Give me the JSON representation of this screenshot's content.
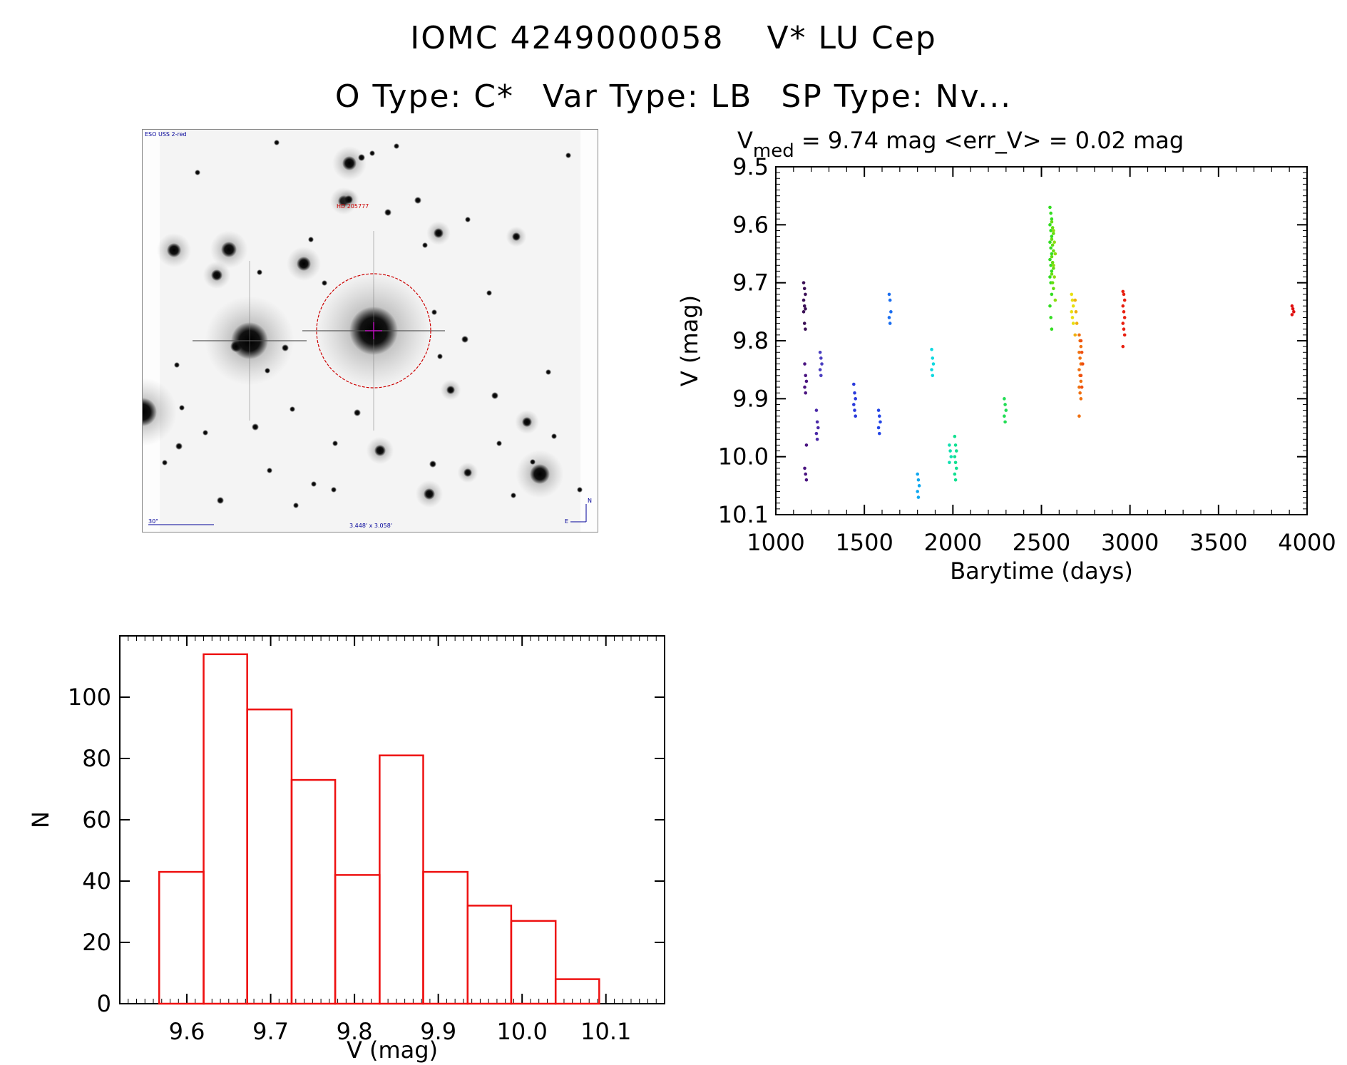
{
  "header": {
    "object_id": "IOMC 4249000058",
    "object_name": "V* LU Cep",
    "o_type": "O Type: C*",
    "var_type": "Var Type: LB",
    "sp_type": "SP Type: Nv..."
  },
  "sky_image": {
    "survey_label": "ESO USS 2-red",
    "target_label": "HD 205777",
    "scale_label": "30\"",
    "field_label": "3.448' x 3.058'",
    "north_label": "N",
    "east_label": "E",
    "colors": {
      "circle": "#cc0000",
      "crosshair": "#cc00cc",
      "labels": "#000099"
    }
  },
  "chart_data": [
    {
      "type": "scatter",
      "title_main": "V",
      "title_sub": "med",
      "title_rest": " = 9.74 mag <err_V> = 0.02 mag",
      "xlabel": "Barytime (days)",
      "ylabel": "V (mag)",
      "xlim": [
        1000,
        4000
      ],
      "ylim": [
        10.1,
        9.5
      ],
      "x_ticks": [
        1000,
        1500,
        2000,
        2500,
        3000,
        3500,
        4000
      ],
      "y_ticks": [
        "9.5",
        "9.6",
        "9.7",
        "9.8",
        "9.9",
        "10.0",
        "10.1"
      ],
      "y_inverted": true,
      "color_by_time": true,
      "groups": [
        {
          "x": 1162,
          "y": [
            9.7,
            9.71,
            9.72,
            9.73,
            9.74,
            9.745,
            9.75,
            9.77,
            9.78
          ],
          "color": "#3a0f55"
        },
        {
          "x": 1168,
          "y": [
            9.84,
            9.86,
            9.87,
            9.88,
            9.89,
            9.98,
            10.02,
            10.03,
            10.04
          ],
          "color": "#4a1480"
        },
        {
          "x": 1234,
          "y": [
            9.92,
            9.94,
            9.95,
            9.96,
            9.97
          ],
          "color": "#4b2aa8"
        },
        {
          "x": 1255,
          "y": [
            9.82,
            9.83,
            9.84,
            9.85,
            9.86
          ],
          "color": "#4a3ec0"
        },
        {
          "x": 1445,
          "y": [
            9.875,
            9.89,
            9.9,
            9.91,
            9.92,
            9.93
          ],
          "color": "#2a3adb"
        },
        {
          "x": 1585,
          "y": [
            9.92,
            9.93,
            9.94,
            9.95,
            9.96
          ],
          "color": "#2244e6"
        },
        {
          "x": 1645,
          "y": [
            9.72,
            9.73,
            9.75,
            9.76,
            9.77
          ],
          "color": "#1a6ef0"
        },
        {
          "x": 1805,
          "y": [
            10.03,
            10.04,
            10.05,
            10.06,
            10.07
          ],
          "color": "#10a8f0"
        },
        {
          "x": 1885,
          "y": [
            9.815,
            9.83,
            9.84,
            9.85,
            9.86
          ],
          "color": "#10d8e0"
        },
        {
          "x": 1985,
          "y": [
            9.98,
            9.99,
            10.0,
            10.01
          ],
          "color": "#10e0b0"
        },
        {
          "x": 2015,
          "y": [
            9.965,
            9.98,
            9.99,
            10.0,
            10.01,
            10.02,
            10.03,
            10.04
          ],
          "color": "#10e090"
        },
        {
          "x": 2295,
          "y": [
            9.9,
            9.91,
            9.92,
            9.93,
            9.94
          ],
          "color": "#22dd55"
        },
        {
          "x": 2553,
          "y": [
            9.57,
            9.58,
            9.59,
            9.6,
            9.61,
            9.62,
            9.63,
            9.64,
            9.65,
            9.66,
            9.67,
            9.68,
            9.69,
            9.7,
            9.72,
            9.74,
            9.76,
            9.78
          ],
          "color": "#33dd22"
        },
        {
          "x": 2563,
          "y": [
            9.595,
            9.605,
            9.615,
            9.625,
            9.635,
            9.645,
            9.655,
            9.665,
            9.675,
            9.685,
            9.7,
            9.71
          ],
          "color": "#66dd11"
        },
        {
          "x": 2573,
          "y": [
            9.61,
            9.63,
            9.65,
            9.67,
            9.69,
            9.73
          ],
          "color": "#8ddd10"
        },
        {
          "x": 2675,
          "y": [
            9.72,
            9.73,
            9.74,
            9.75,
            9.76,
            9.77
          ],
          "color": "#e8e010"
        },
        {
          "x": 2695,
          "y": [
            9.73,
            9.75,
            9.77,
            9.79
          ],
          "color": "#f0b010"
        },
        {
          "x": 2718,
          "y": [
            9.79,
            9.8,
            9.81,
            9.82,
            9.83,
            9.84,
            9.85,
            9.86,
            9.87,
            9.88,
            9.89,
            9.9,
            9.93
          ],
          "color": "#f07010"
        },
        {
          "x": 2728,
          "y": [
            9.8,
            9.82,
            9.84,
            9.86,
            9.88
          ],
          "color": "#ee5010"
        },
        {
          "x": 2965,
          "y": [
            9.715,
            9.72,
            9.73,
            9.74,
            9.75,
            9.76,
            9.77,
            9.78,
            9.79,
            9.81
          ],
          "color": "#e82010"
        },
        {
          "x": 3920,
          "y": [
            9.74,
            9.745,
            9.75,
            9.755
          ],
          "color": "#e01010"
        }
      ]
    },
    {
      "type": "bar",
      "xlabel": "V (mag)",
      "ylabel": "N",
      "xlim": [
        9.52,
        10.17
      ],
      "ylim": [
        0,
        120
      ],
      "x_ticks": [
        "9.6",
        "9.7",
        "9.8",
        "9.9",
        "10.0",
        "10.1"
      ],
      "y_ticks": [
        "0",
        "20",
        "40",
        "60",
        "80",
        "100"
      ],
      "bin_edges": [
        9.567,
        9.62,
        9.672,
        9.725,
        9.777,
        9.83,
        9.882,
        9.935,
        9.987,
        10.04,
        10.092
      ],
      "values": [
        43,
        114,
        96,
        73,
        42,
        81,
        43,
        32,
        27,
        8
      ],
      "bar_color": "#ee1111"
    }
  ]
}
